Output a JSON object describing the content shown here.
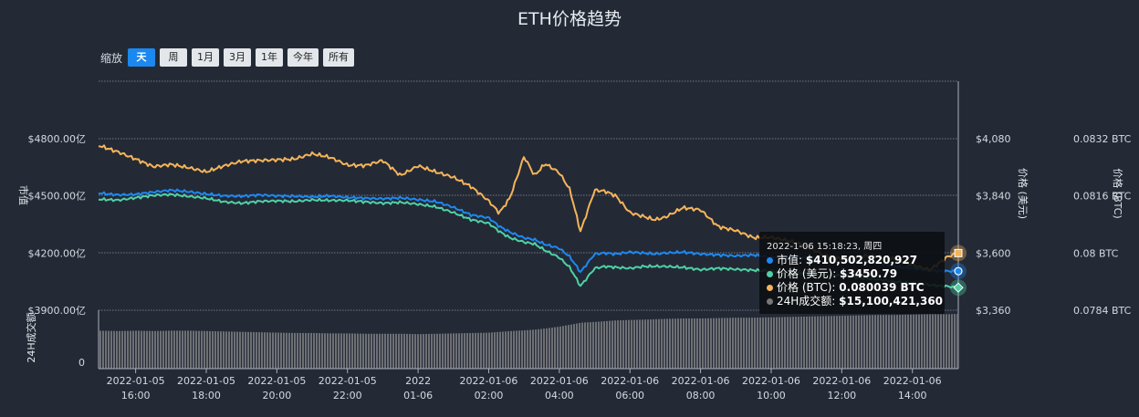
{
  "title": "ETH价格趋势",
  "zoom": {
    "label": "缩放",
    "buttons": [
      "天",
      "周",
      "1月",
      "3月",
      "1年",
      "今年",
      "所有"
    ],
    "active": "天"
  },
  "colors": {
    "background": "#232a36",
    "market_cap": "#1e88f2",
    "price_usd": "#4fd1a5",
    "price_btc": "#f5b45a",
    "volume": "#6e7075"
  },
  "chart_data": {
    "type": "line",
    "title": "ETH价格趋势",
    "x_ticks": [
      {
        "date": "2022-01-05",
        "time": "16:00"
      },
      {
        "date": "2022-01-05",
        "time": "18:00"
      },
      {
        "date": "2022-01-05",
        "time": "20:00"
      },
      {
        "date": "2022-01-05",
        "time": "22:00"
      },
      {
        "date": "2022",
        "time": "01-06"
      },
      {
        "date": "2022-01-06",
        "time": "02:00"
      },
      {
        "date": "2022-01-06",
        "time": "04:00"
      },
      {
        "date": "2022-01-06",
        "time": "06:00"
      },
      {
        "date": "2022-01-06",
        "time": "08:00"
      },
      {
        "date": "2022-01-06",
        "time": "10:00"
      },
      {
        "date": "2022-01-06",
        "time": "12:00"
      },
      {
        "date": "2022-01-06",
        "time": "14:00"
      }
    ],
    "x_hours": [
      14.95,
      15.5,
      16,
      16.5,
      17,
      17.5,
      18,
      18.5,
      19,
      19.5,
      20,
      20.5,
      21,
      21.5,
      22,
      22.5,
      23,
      23.5,
      24,
      24.5,
      25,
      25.5,
      26,
      26.3,
      26.6,
      27,
      27.3,
      27.6,
      28,
      28.3,
      28.6,
      29,
      29.3,
      29.6,
      30,
      30.4,
      30.7,
      31,
      31.5,
      32,
      32.5,
      33,
      33.5,
      34,
      34.5,
      35,
      35.5,
      36,
      36.5,
      37,
      37.5,
      38,
      38.5,
      39,
      39.3
    ],
    "axis_left": {
      "label": "市值",
      "ticks": [
        "$4800.00亿",
        "$4500.00亿",
        "$4200.00亿",
        "$3900.00亿"
      ],
      "ylim": [
        3900,
        4800
      ],
      "unit": "亿"
    },
    "axis_right_usd": {
      "label": "价格 (美元)",
      "ticks": [
        "$4,080",
        "$3,840",
        "$3,600",
        "$3,360"
      ],
      "ylim": [
        3360,
        4080
      ]
    },
    "axis_right_btc": {
      "label": "价格 (BTC)",
      "ticks": [
        "0.0832 BTC",
        "0.0816 BTC",
        "0.08 BTC",
        "0.0784 BTC"
      ],
      "ylim": [
        0.0784,
        0.0832
      ]
    },
    "axis_volume": {
      "label": "24H成交额",
      "ticks": [
        "0"
      ]
    },
    "series": [
      {
        "name": "市值",
        "values": [
          4515,
          4505,
          4508,
          4520,
          4530,
          4522,
          4510,
          4500,
          4498,
          4505,
          4500,
          4498,
          4495,
          4500,
          4492,
          4488,
          4485,
          4490,
          4480,
          4470,
          4440,
          4400,
          4385,
          4340,
          4310,
          4280,
          4270,
          4245,
          4225,
          4180,
          4100,
          4195,
          4200,
          4195,
          4205,
          4200,
          4195,
          4200,
          4205,
          4195,
          4190,
          4185,
          4190,
          4178,
          4180,
          4175,
          4178,
          4168,
          4160,
          4150,
          4130,
          4120,
          4108,
          4105,
          4105
        ]
      },
      {
        "name": "价格 (美元)",
        "values": [
          3826,
          3822,
          3832,
          3842,
          3846,
          3838,
          3830,
          3815,
          3809,
          3817,
          3819,
          3817,
          3823,
          3821,
          3821,
          3815,
          3809,
          3813,
          3805,
          3794,
          3770,
          3740,
          3725,
          3691,
          3664,
          3646,
          3638,
          3611,
          3581,
          3539,
          3461,
          3536,
          3544,
          3540,
          3536,
          3544,
          3544,
          3544,
          3540,
          3530,
          3536,
          3532,
          3528,
          3524,
          3518,
          3516,
          3510,
          3506,
          3496,
          3490,
          3480,
          3474,
          3466,
          3460,
          3455
        ]
      },
      {
        "name": "价格 (BTC)",
        "values": [
          0.08301,
          0.08283,
          0.08263,
          0.08242,
          0.08248,
          0.08239,
          0.08227,
          0.08244,
          0.08257,
          0.08259,
          0.08261,
          0.08263,
          0.08278,
          0.08268,
          0.08246,
          0.08245,
          0.08259,
          0.08217,
          0.08244,
          0.08227,
          0.08212,
          0.08186,
          0.08146,
          0.08112,
          0.08154,
          0.0827,
          0.08217,
          0.0825,
          0.08225,
          0.08177,
          0.0806,
          0.08176,
          0.08173,
          0.0816,
          0.08113,
          0.08102,
          0.08093,
          0.081,
          0.08127,
          0.08121,
          0.08074,
          0.08063,
          0.08043,
          0.08044,
          0.08034,
          0.08019,
          0.07994,
          0.07984,
          0.07991,
          0.07992,
          0.07983,
          0.07966,
          0.07953,
          0.0799,
          0.08
        ]
      },
      {
        "name": "24H成交额",
        "values": [
          0.99,
          0.98,
          0.99,
          0.98,
          0.99,
          0.99,
          0.98,
          0.97,
          0.96,
          0.95,
          0.94,
          0.93,
          0.93,
          0.92,
          0.92,
          0.91,
          0.91,
          0.91,
          0.9,
          0.91,
          0.92,
          0.93,
          0.94,
          0.96,
          0.98,
          1.0,
          1.02,
          1.05,
          1.1,
          1.15,
          1.2,
          1.22,
          1.24,
          1.26,
          1.27,
          1.28,
          1.29,
          1.3,
          1.31,
          1.31,
          1.32,
          1.33,
          1.33,
          1.34,
          1.35,
          1.36,
          1.37,
          1.38,
          1.39,
          1.4,
          1.4,
          1.41,
          1.42,
          1.42,
          1.43
        ]
      }
    ],
    "grid": true
  },
  "tooltip": {
    "date": "2022-1-06 15:18:23, 周四",
    "rows": [
      {
        "label": "市值",
        "value": "$410,502,820,927"
      },
      {
        "label": "价格 (美元)",
        "value": "$3450.79"
      },
      {
        "label": "价格 (BTC)",
        "value": "0.080039 BTC"
      },
      {
        "label": "24H成交额",
        "value": "$15,100,421,360"
      }
    ]
  }
}
